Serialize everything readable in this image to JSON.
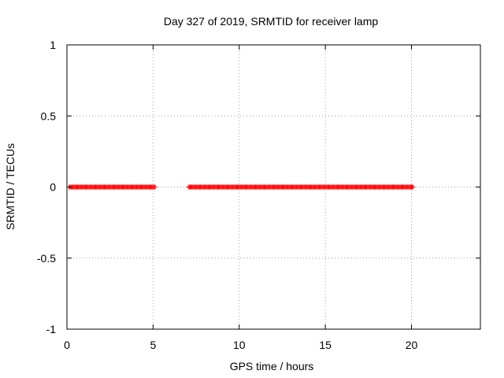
{
  "chart_data": {
    "type": "scatter",
    "title": "Day 327 of 2019, SRMTID for receiver lamp",
    "xlabel": "GPS time / hours",
    "ylabel": "SRMTID / TECUs",
    "xlim": [
      0,
      24
    ],
    "ylim": [
      -1,
      1
    ],
    "grid": true,
    "xticks": [
      0,
      5,
      10,
      15,
      20
    ],
    "xtick_labels": [
      "0",
      "5",
      "10",
      "15",
      "20"
    ],
    "yticks": [
      -1,
      -0.5,
      0,
      0.5,
      1
    ],
    "ytick_labels": [
      "-1",
      "-0.5",
      "0",
      "0.5",
      "1"
    ],
    "series": [
      {
        "name": "SRMTID",
        "marker": "plus",
        "color": "#ff0000",
        "segments": [
          {
            "x_start": 0.12,
            "x_end": 5.1,
            "step": 0.05,
            "y": 0
          },
          {
            "x_start": 7.05,
            "x_end": 20.1,
            "step": 0.05,
            "y": 0
          }
        ]
      }
    ]
  },
  "colors": {
    "grid": "#a0a0a0",
    "axis": "#000000",
    "marker": "#ff0000"
  }
}
